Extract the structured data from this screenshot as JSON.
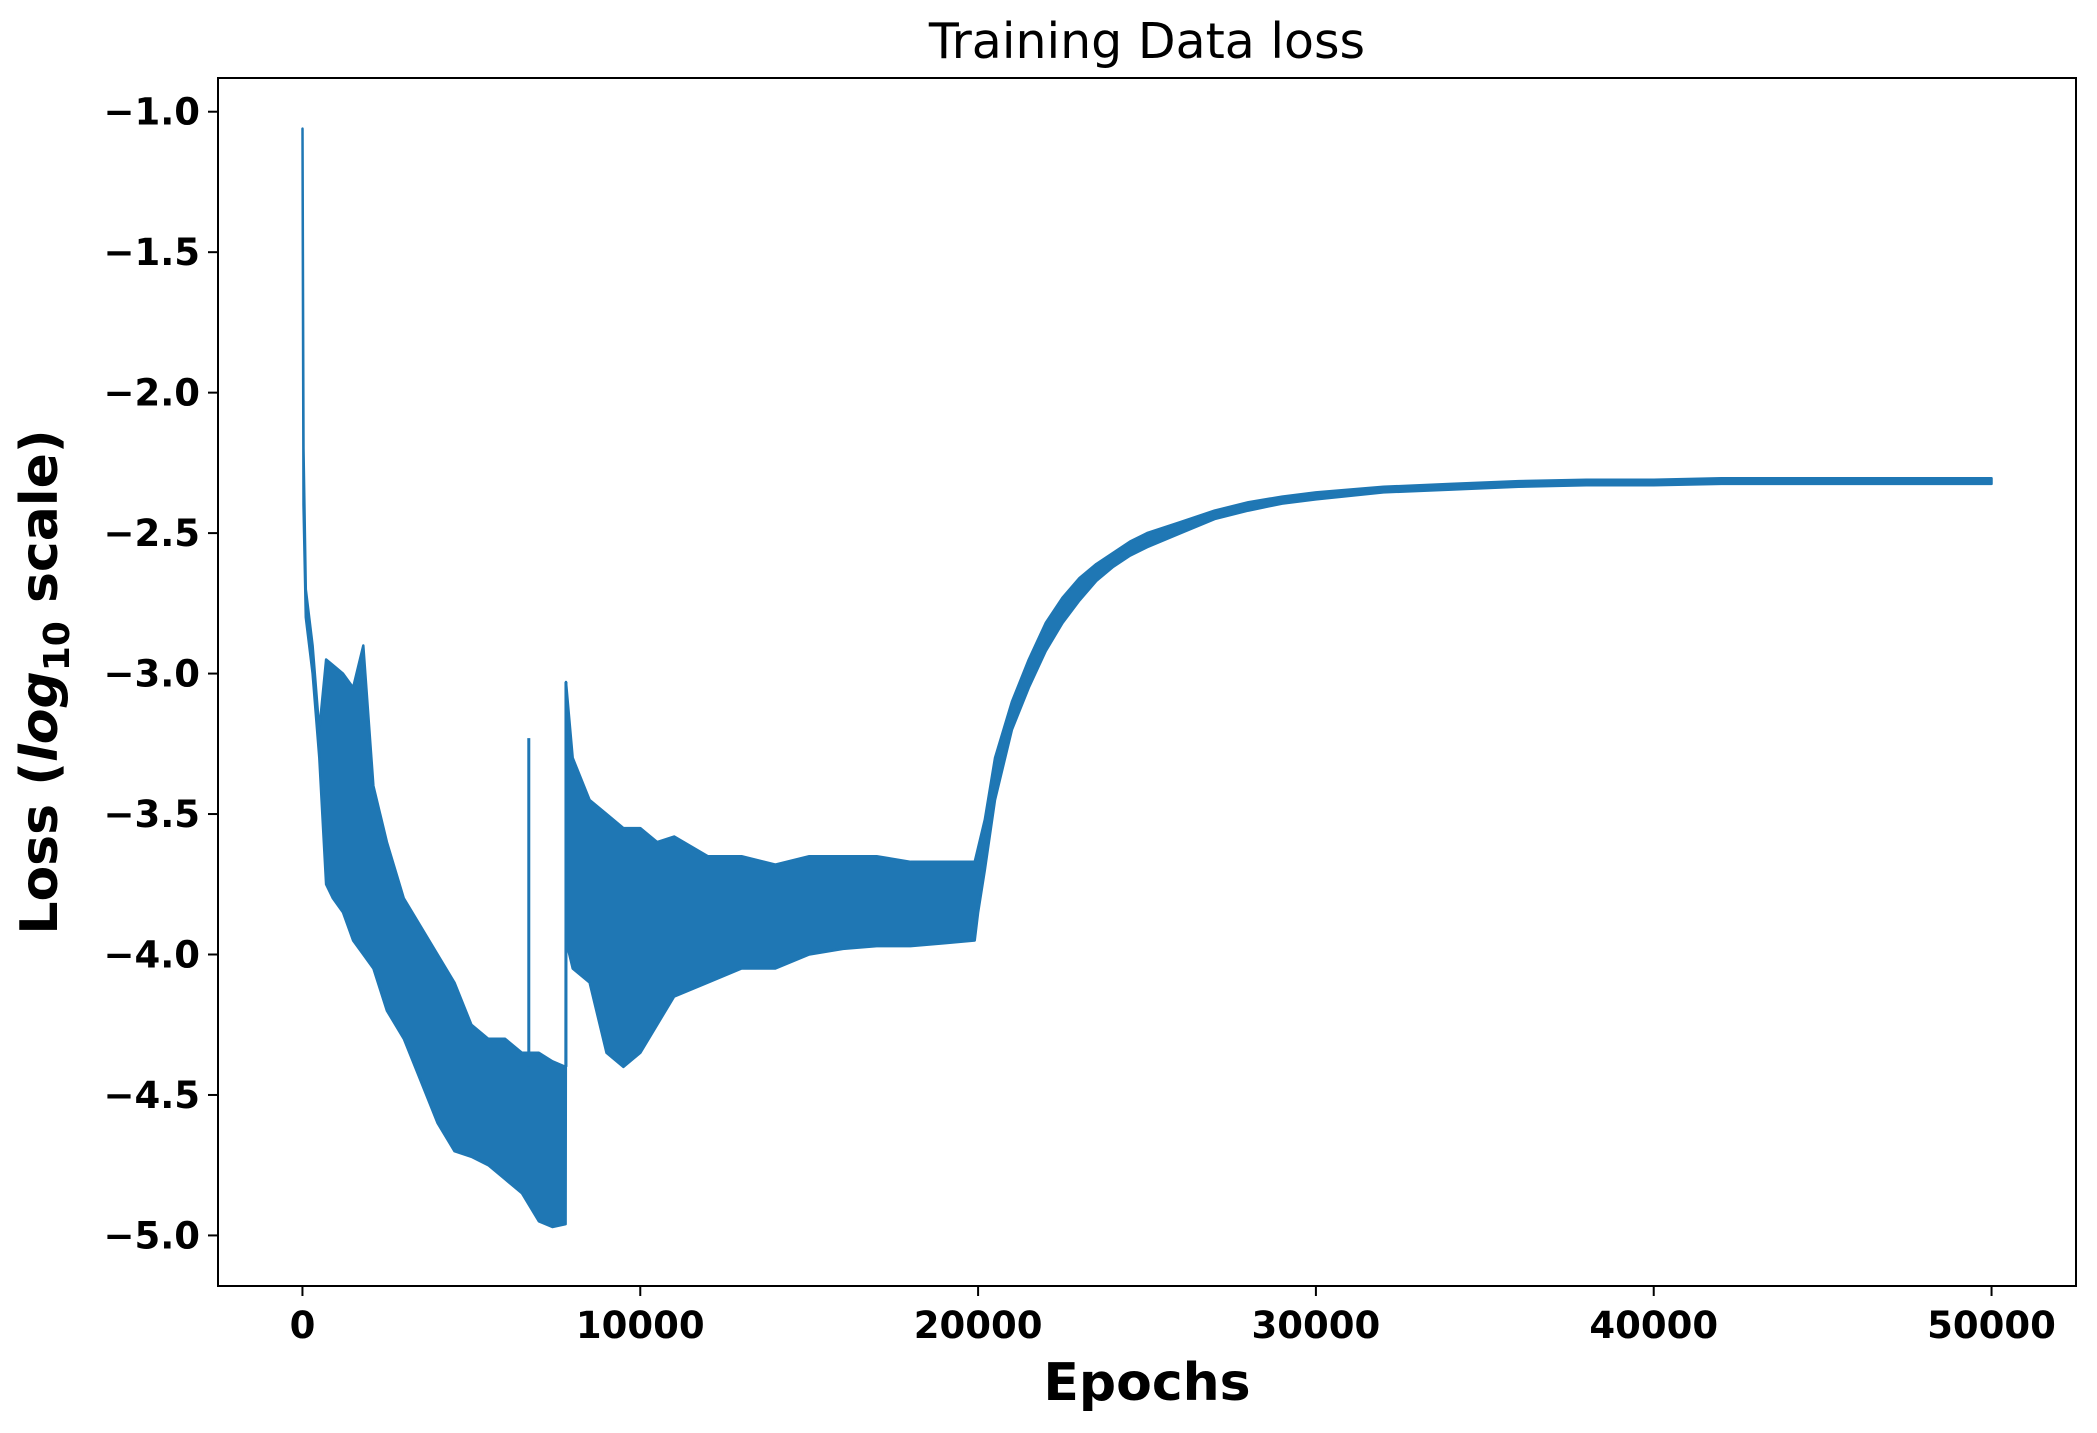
{
  "chart_data": {
    "type": "line",
    "title": "Training Data loss",
    "xlabel": "Epochs",
    "ylabel": {
      "prefix": "Loss (",
      "log": "log",
      "base": "10",
      "suffix": " scale)"
    },
    "xlim": [
      -2500,
      52500
    ],
    "ylim": [
      -5.18,
      -0.88
    ],
    "x_ticks": [
      0,
      10000,
      20000,
      30000,
      40000,
      50000
    ],
    "x_tick_labels": [
      "0",
      "10000",
      "20000",
      "30000",
      "40000",
      "50000"
    ],
    "y_ticks": [
      -1.0,
      -1.5,
      -2.0,
      -2.5,
      -3.0,
      -3.5,
      -4.0,
      -4.5,
      -5.0
    ],
    "y_tick_labels": [
      "−1.0",
      "−1.5",
      "−2.0",
      "−2.5",
      "−3.0",
      "−3.5",
      "−4.0",
      "−4.5",
      "−5.0"
    ],
    "grid": false,
    "series": [
      {
        "color": "#1f77b4",
        "envelope": {
          "x": [
            0,
            30,
            100,
            300,
            500,
            700,
            900,
            1200,
            1500,
            1800,
            2100,
            2500,
            3000,
            3500,
            4000,
            4500,
            5000,
            5500,
            6000,
            6500,
            7000,
            7400,
            7790,
            7800,
            8000,
            8500,
            9000,
            9500,
            10000,
            10500,
            11000,
            12000,
            13000,
            14000,
            15000,
            16000,
            17000,
            18000,
            19000,
            19900,
            20000,
            20200,
            20500,
            21000,
            21500,
            22000,
            22500,
            23000,
            23500,
            24000,
            24500,
            25000,
            26000,
            27000,
            28000,
            29000,
            30000,
            32000,
            34000,
            36000,
            38000,
            40000,
            42000,
            44000,
            46000,
            48000,
            50000
          ],
          "upper": [
            -1.06,
            -2.2,
            -2.7,
            -2.9,
            -3.2,
            -2.95,
            -2.97,
            -3.0,
            -3.05,
            -2.9,
            -3.4,
            -3.6,
            -3.8,
            -3.9,
            -4.0,
            -4.1,
            -4.25,
            -4.3,
            -4.3,
            -4.35,
            -4.35,
            -4.38,
            -4.4,
            -3.03,
            -3.3,
            -3.45,
            -3.5,
            -3.55,
            -3.55,
            -3.6,
            -3.58,
            -3.65,
            -3.65,
            -3.68,
            -3.65,
            -3.65,
            -3.65,
            -3.67,
            -3.67,
            -3.67,
            -3.62,
            -3.52,
            -3.3,
            -3.1,
            -2.95,
            -2.82,
            -2.73,
            -2.66,
            -2.61,
            -2.57,
            -2.53,
            -2.5,
            -2.46,
            -2.42,
            -2.39,
            -2.37,
            -2.355,
            -2.335,
            -2.325,
            -2.315,
            -2.31,
            -2.31,
            -2.305,
            -2.305,
            -2.305,
            -2.305,
            -2.305
          ],
          "lower": [
            -1.06,
            -2.4,
            -2.8,
            -3.0,
            -3.3,
            -3.75,
            -3.8,
            -3.85,
            -3.95,
            -4.0,
            -4.05,
            -4.2,
            -4.3,
            -4.45,
            -4.6,
            -4.7,
            -4.72,
            -4.75,
            -4.8,
            -4.85,
            -4.95,
            -4.97,
            -4.96,
            -3.95,
            -4.05,
            -4.1,
            -4.35,
            -4.4,
            -4.35,
            -4.25,
            -4.15,
            -4.1,
            -4.05,
            -4.05,
            -4.0,
            -3.98,
            -3.97,
            -3.97,
            -3.96,
            -3.95,
            -3.85,
            -3.7,
            -3.45,
            -3.2,
            -3.05,
            -2.92,
            -2.82,
            -2.74,
            -2.67,
            -2.62,
            -2.58,
            -2.55,
            -2.5,
            -2.45,
            -2.42,
            -2.395,
            -2.38,
            -2.355,
            -2.345,
            -2.335,
            -2.33,
            -2.33,
            -2.325,
            -2.325,
            -2.325,
            -2.325,
            -2.325
          ]
        },
        "spikes": [
          {
            "x": 6700,
            "y": -3.23
          },
          {
            "x": 7800,
            "y": -3.03
          }
        ]
      }
    ]
  }
}
